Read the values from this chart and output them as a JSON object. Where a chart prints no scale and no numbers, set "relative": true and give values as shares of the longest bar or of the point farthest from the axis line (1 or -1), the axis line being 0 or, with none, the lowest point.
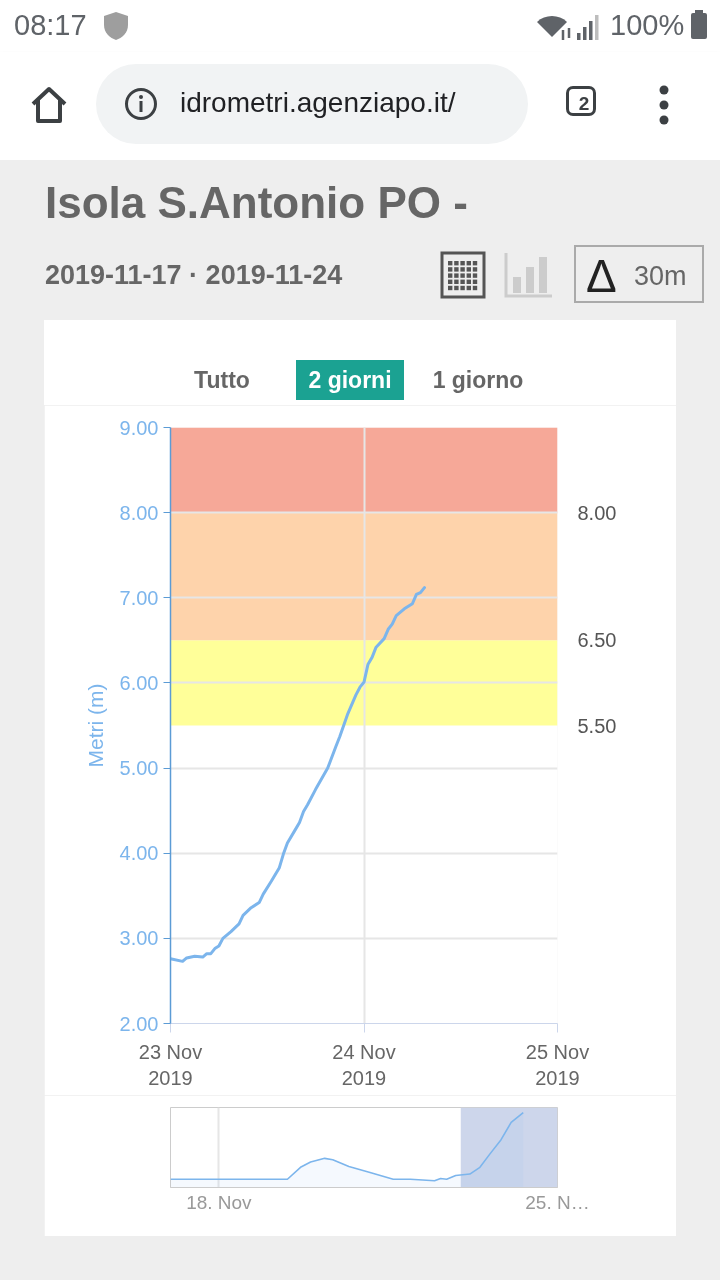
{
  "chart_data": [
    {
      "type": "line",
      "title": "Isola S.Antonio PO -",
      "subtitle": "2019-11-17 · 2019-11-24",
      "ylabel": "Metri (m)",
      "annotations": [
        "08:17",
        "100%",
        "idrometri.agenziapo.it/",
        "2",
        "Δ",
        "30m",
        "Tutto",
        "2 giorni",
        "1 giorno"
      ],
      "x": [
        "2019-11-23T00:00",
        "2019-11-23T01:30",
        "2019-11-23T02:00",
        "2019-11-23T03:00",
        "2019-11-23T04:00",
        "2019-11-23T04:30",
        "2019-11-23T05:00",
        "2019-11-23T05:30",
        "2019-11-23T06:00",
        "2019-11-23T06:30",
        "2019-11-23T07:30",
        "2019-11-23T08:30",
        "2019-11-23T09:00",
        "2019-11-23T10:00",
        "2019-11-23T11:00",
        "2019-11-23T11:30",
        "2019-11-23T12:30",
        "2019-11-23T13:30",
        "2019-11-23T14:00",
        "2019-11-23T14:30",
        "2019-11-23T15:30",
        "2019-11-23T16:00",
        "2019-11-23T16:30",
        "2019-11-23T17:00",
        "2019-11-23T18:00",
        "2019-11-23T19:30",
        "2019-11-23T20:30",
        "2019-11-23T21:00",
        "2019-11-23T22:00",
        "2019-11-23T23:00",
        "2019-11-23T23:30",
        "2019-11-24T00:00",
        "2019-11-24T00:30",
        "2019-11-24T01:00",
        "2019-11-24T01:30",
        "2019-11-24T02:30",
        "2019-11-24T03:00",
        "2019-11-24T03:30",
        "2019-11-24T04:00",
        "2019-11-24T05:00",
        "2019-11-24T06:00",
        "2019-11-24T06:30",
        "2019-11-24T07:00",
        "2019-11-24T07:30"
      ],
      "values": [
        2.76,
        2.73,
        2.77,
        2.79,
        2.78,
        2.82,
        2.82,
        2.88,
        2.91,
        3.0,
        3.08,
        3.17,
        3.27,
        3.36,
        3.42,
        3.52,
        3.67,
        3.83,
        3.99,
        4.12,
        4.28,
        4.36,
        4.49,
        4.57,
        4.75,
        5.0,
        5.25,
        5.37,
        5.64,
        5.86,
        5.95,
        6.01,
        6.22,
        6.3,
        6.42,
        6.52,
        6.63,
        6.69,
        6.79,
        6.87,
        6.93,
        7.04,
        7.06,
        7.12
      ],
      "color": "#7cb5ec",
      "xlim": [
        "2019-11-23",
        "2019-11-25"
      ],
      "xticks": [
        {
          "value": "2019-11-23",
          "label": "23 Nov\n2019"
        },
        {
          "value": "2019-11-24",
          "label": "24 Nov\n2019"
        },
        {
          "value": "2019-11-25",
          "label": "25 Nov\n2019"
        }
      ],
      "ylim": [
        2,
        9
      ],
      "yticks": [
        {
          "value": 2,
          "label": "2.00"
        },
        {
          "value": 3,
          "label": "3.00"
        },
        {
          "value": 4,
          "label": "4.00"
        },
        {
          "value": 5,
          "label": "5.00"
        },
        {
          "value": 6,
          "label": "6.00"
        },
        {
          "value": 7,
          "label": "7.00"
        },
        {
          "value": 8,
          "label": "8.00"
        },
        {
          "value": 9,
          "label": "9.00"
        }
      ],
      "bands": [
        {
          "axis": "y",
          "from": 5.5,
          "to": 6.5,
          "label": "5.50",
          "color": "#ffff99"
        },
        {
          "axis": "y",
          "from": 6.5,
          "to": 8,
          "label": "6.50",
          "color": "#fed3ab"
        },
        {
          "axis": "y",
          "from": 8,
          "to": 9,
          "label": "8.00",
          "color": "#f6a898"
        }
      ],
      "grid": true
    },
    {
      "type": "area",
      "relative": true,
      "x": [
        "2019-11-17T00:00",
        "2019-11-19T10:00",
        "2019-11-19T16:30",
        "2019-11-19T21:30",
        "2019-11-20T04:30",
        "2019-11-20T08:30",
        "2019-11-20T16:30",
        "2019-11-21T03:00",
        "2019-11-21T14:30",
        "2019-11-21T23:00",
        "2019-11-22T11:00",
        "2019-11-22T14:00",
        "2019-11-22T17:00",
        "2019-11-22T21:30",
        "2019-11-23T04:30",
        "2019-11-23T09:30",
        "2019-11-23T14:30",
        "2019-11-23T20:00",
        "2019-11-24T01:00",
        "2019-11-24T07:00"
      ],
      "values": [
        0.11,
        0.11,
        0.27,
        0.34,
        0.39,
        0.37,
        0.28,
        0.2,
        0.11,
        0.11,
        0.09,
        0.12,
        0.11,
        0.16,
        0.18,
        0.27,
        0.45,
        0.64,
        0.87,
        1
      ],
      "color": "#7cb5ec",
      "xlim": [
        "2019-11-17",
        "2019-11-25"
      ],
      "xticks": [
        {
          "value": "2019-11-18",
          "label": "18. Nov"
        },
        {
          "value": "2019-11-25",
          "label": "25. N…"
        }
      ],
      "bands": [
        {
          "axis": "x",
          "from": "2019-11-23",
          "to": "2019-11-25",
          "color": "#cdd6eb"
        }
      ],
      "grid": "x",
      "tick_labels": "x"
    }
  ]
}
